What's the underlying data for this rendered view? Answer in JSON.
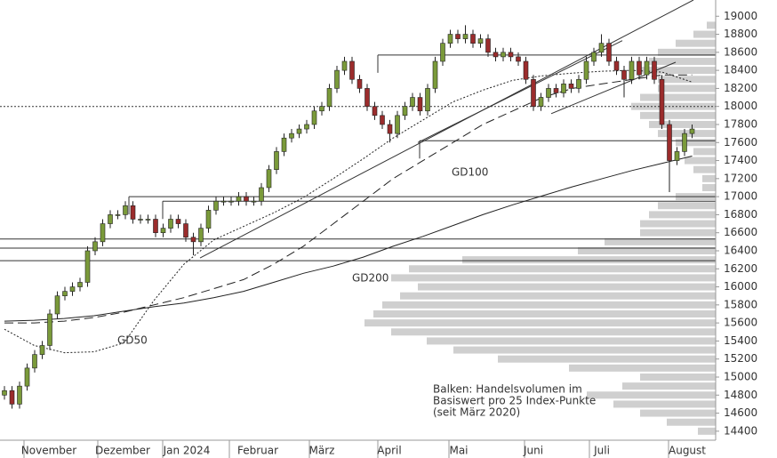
{
  "chart_data": {
    "type": "candlestick",
    "ylim": [
      14300,
      19180
    ],
    "yticks": [
      14400,
      14600,
      14800,
      15000,
      15200,
      15400,
      15600,
      15800,
      16000,
      16200,
      16400,
      16600,
      16800,
      17000,
      17200,
      17400,
      17600,
      17800,
      18000,
      18200,
      18400,
      18600,
      18800,
      19000
    ],
    "x_labels": [
      "November",
      "Dezember",
      "Jan 2024",
      "Februar",
      "März",
      "April",
      "Mai",
      "Juni",
      "Juli",
      "August"
    ],
    "up_color": "#7a9a3a",
    "down_color": "#9b2c2c",
    "open": [
      14800,
      14850,
      14700,
      14900,
      15100,
      15250,
      15350,
      15700,
      15900,
      15950,
      16000,
      16050,
      16400,
      16500,
      16700,
      16800,
      16800,
      16900,
      16750,
      16750,
      16750,
      16600,
      16650,
      16750,
      16700,
      16550,
      16500,
      16650,
      16850,
      16950,
      16950,
      16950,
      17000,
      16950,
      16950,
      17100,
      17300,
      17500,
      17650,
      17700,
      17750,
      17800,
      17950,
      18000,
      18200,
      18400,
      18500,
      18300,
      18200,
      18000,
      17900,
      17800,
      17700,
      17900,
      18000,
      18100,
      17950,
      18200,
      18500,
      18700,
      18800,
      18750,
      18800,
      18700,
      18750,
      18600,
      18550,
      18600,
      18550,
      18500,
      18300,
      18000,
      18100,
      18200,
      18150,
      18250,
      18200,
      18300,
      18500,
      18600,
      18700,
      18500,
      18400,
      18300,
      18500,
      18350,
      18500,
      18300,
      17800,
      17400,
      17500,
      17700
    ],
    "high": [
      14900,
      14900,
      14950,
      15150,
      15300,
      15400,
      15750,
      15950,
      16000,
      16050,
      16100,
      16450,
      16550,
      16750,
      16850,
      16850,
      16950,
      16950,
      16800,
      16800,
      16800,
      16700,
      16800,
      16800,
      16750,
      16600,
      16700,
      16900,
      17000,
      17000,
      17000,
      17050,
      17050,
      17000,
      17150,
      17350,
      17550,
      17700,
      17750,
      17800,
      17850,
      18000,
      18050,
      18250,
      18450,
      18550,
      18550,
      18350,
      18250,
      18050,
      17950,
      17850,
      17950,
      18050,
      18150,
      18150,
      18250,
      18550,
      18750,
      18850,
      18850,
      18900,
      18850,
      18800,
      18800,
      18650,
      18650,
      18650,
      18600,
      18550,
      18350,
      18150,
      18250,
      18250,
      18300,
      18300,
      18350,
      18550,
      18650,
      18800,
      18750,
      18550,
      18450,
      18550,
      18550,
      18550,
      18550,
      18350,
      17850,
      17550,
      17750,
      17800
    ],
    "low": [
      14750,
      14650,
      14650,
      14850,
      15050,
      15200,
      15300,
      15650,
      15850,
      15900,
      15950,
      16000,
      16350,
      16450,
      16650,
      16750,
      16750,
      16700,
      16700,
      16700,
      16550,
      16550,
      16600,
      16650,
      16500,
      16350,
      16450,
      16600,
      16800,
      16900,
      16900,
      16900,
      16900,
      16900,
      16900,
      17050,
      17250,
      17450,
      17600,
      17650,
      17700,
      17750,
      17900,
      17950,
      18150,
      18350,
      18250,
      18150,
      17950,
      17850,
      17750,
      17600,
      17650,
      17850,
      17950,
      17900,
      17900,
      18150,
      18450,
      18650,
      18700,
      18700,
      18650,
      18650,
      18550,
      18500,
      18500,
      18500,
      18450,
      18250,
      17950,
      17950,
      18050,
      18100,
      18100,
      18150,
      18150,
      18250,
      18450,
      18550,
      18450,
      18350,
      18100,
      18250,
      18300,
      18300,
      18250,
      17750,
      17050,
      17350,
      17450,
      17650
    ],
    "close": [
      14850,
      14700,
      14900,
      15100,
      15250,
      15350,
      15700,
      15900,
      15950,
      16000,
      16050,
      16400,
      16500,
      16700,
      16800,
      16800,
      16900,
      16750,
      16750,
      16750,
      16600,
      16650,
      16750,
      16700,
      16550,
      16500,
      16650,
      16850,
      16950,
      16950,
      16950,
      17000,
      16950,
      16950,
      17100,
      17300,
      17500,
      17650,
      17700,
      17750,
      17800,
      17950,
      18000,
      18200,
      18400,
      18500,
      18300,
      18200,
      18000,
      17900,
      17800,
      17700,
      17900,
      18000,
      18100,
      17950,
      18200,
      18500,
      18700,
      18800,
      18750,
      18800,
      18700,
      18750,
      18600,
      18550,
      18600,
      18550,
      18500,
      18300,
      18000,
      18100,
      18200,
      18150,
      18250,
      18200,
      18300,
      18500,
      18600,
      18700,
      18500,
      18400,
      18300,
      18500,
      18350,
      18500,
      18300,
      17800,
      17400,
      17500,
      17700,
      17750
    ],
    "moving_averages": [
      {
        "name": "GD50",
        "dash": "2,2",
        "values": [
          15530,
          15350,
          15270,
          15280,
          15380,
          15850,
          16250,
          16520,
          16670,
          16820,
          16990,
          17200,
          17420,
          17650,
          17850,
          18050,
          18180,
          18290,
          18340,
          18370,
          18390,
          18400,
          18380,
          18270
        ]
      },
      {
        "name": "GD100",
        "dash": "10,5",
        "values": [
          15600,
          15600,
          15620,
          15660,
          15720,
          15800,
          15880,
          15980,
          16080,
          16250,
          16450,
          16700,
          16950,
          17200,
          17400,
          17600,
          17800,
          17950,
          18100,
          18200,
          18250,
          18300,
          18350,
          18350
        ]
      },
      {
        "name": "GD200",
        "dash": "none",
        "values": [
          15620,
          15630,
          15650,
          15680,
          15730,
          15780,
          15820,
          15880,
          15950,
          16050,
          16150,
          16230,
          16330,
          16450,
          16560,
          16680,
          16800,
          16910,
          17010,
          17110,
          17200,
          17290,
          17370,
          17450
        ]
      }
    ],
    "levels": [
      18570,
      17620,
      17000,
      16950,
      16530,
      16430,
      16290
    ],
    "dotted_level": 18000,
    "trendlines": [
      [
        16320,
        19180
      ],
      [
        17600,
        18730
      ],
      [
        17920,
        18490
      ]
    ],
    "volume_profile": {
      "prices": [
        14400,
        14500,
        14600,
        14700,
        14800,
        14900,
        15000,
        15100,
        15200,
        15300,
        15400,
        15500,
        15600,
        15700,
        15800,
        15900,
        16000,
        16100,
        16200,
        16300,
        16400,
        16500,
        16600,
        16700,
        16800,
        16900,
        17000,
        17100,
        17200,
        17300,
        17400,
        17500,
        17600,
        17700,
        17800,
        17900,
        18000,
        18100,
        18200,
        18300,
        18400,
        18500,
        18600,
        18700,
        18800,
        18900
      ],
      "values": [
        20,
        55,
        85,
        115,
        145,
        105,
        85,
        165,
        245,
        295,
        325,
        365,
        395,
        385,
        375,
        355,
        335,
        365,
        345,
        285,
        155,
        125,
        85,
        85,
        75,
        65,
        45,
        15,
        15,
        25,
        35,
        25,
        45,
        65,
        75,
        85,
        95,
        85,
        65,
        65,
        85,
        75,
        65,
        45,
        25,
        10
      ],
      "color": "#cfcfcf"
    },
    "note": [
      "Balken: Handelsvolumen im",
      "Basiswert pro 25 Index-Punkte",
      "(seit März 2020)"
    ]
  }
}
